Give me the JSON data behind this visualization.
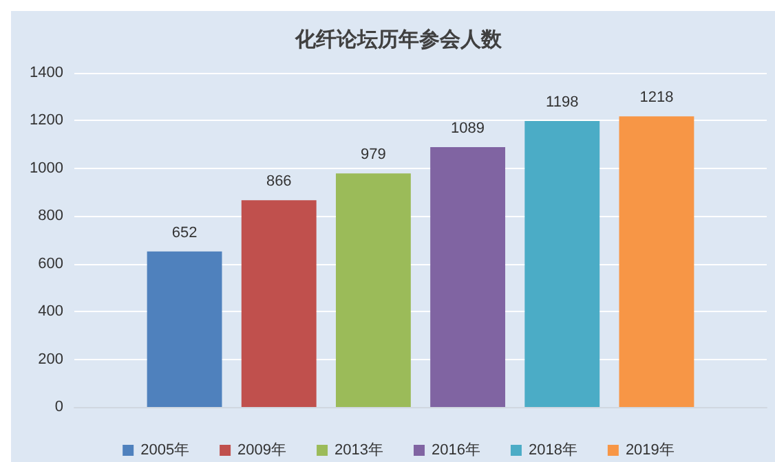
{
  "chart_data": {
    "type": "bar",
    "title": "化纤论坛历年参会人数",
    "categories": [
      null
    ],
    "series": [
      {
        "name": "2005年",
        "color": "#4f81bd",
        "values": [
          652
        ]
      },
      {
        "name": "2009年",
        "color": "#c0504d",
        "values": [
          866
        ]
      },
      {
        "name": "2013年",
        "color": "#9bbb59",
        "values": [
          979
        ]
      },
      {
        "name": "2016年",
        "color": "#8064a2",
        "values": [
          1089
        ]
      },
      {
        "name": "2018年",
        "color": "#4bacc6",
        "values": [
          1198
        ]
      },
      {
        "name": "2019年",
        "color": "#f79646",
        "values": [
          1218
        ]
      }
    ],
    "ylim": [
      0,
      1400
    ],
    "yticks": [
      0,
      200,
      400,
      600,
      800,
      1000,
      1200,
      1400
    ],
    "grid": "y",
    "legend": "bottom",
    "data_labels": true
  }
}
